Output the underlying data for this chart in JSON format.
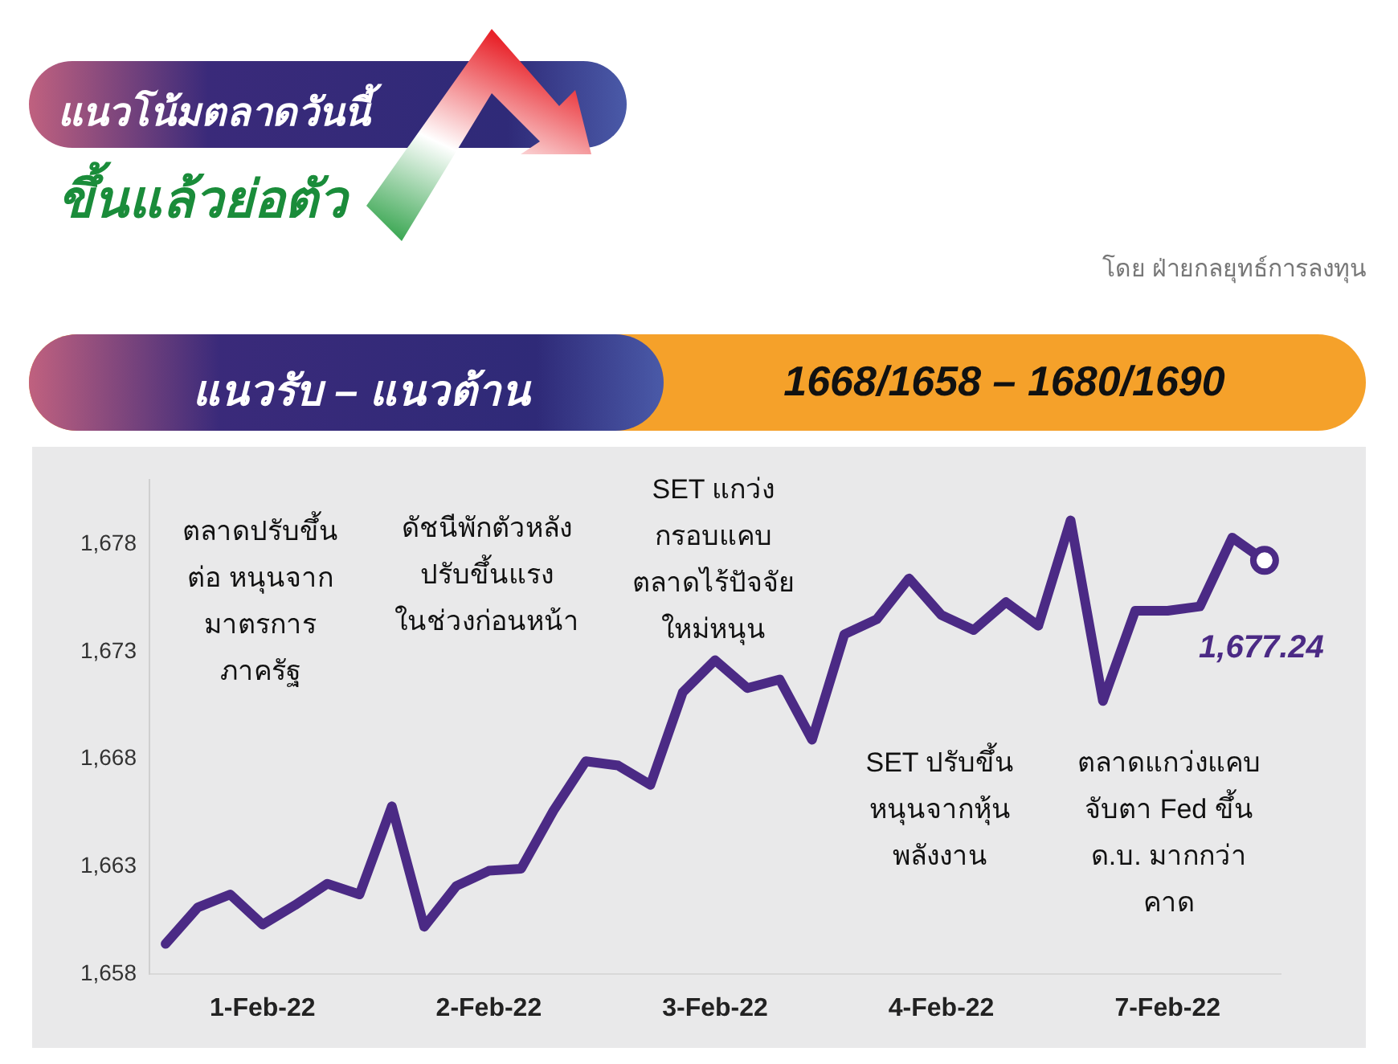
{
  "chart_data": {
    "type": "line",
    "title": "แนวโน้มตลาดวันนี้",
    "subtitle": "ขึ้นแล้วย่อตัว",
    "annotations": [
      "โดย ฝ่ายกลยุทธ์การลงทุน",
      "แนวรับ – แนวต้าน",
      "1668/1658   –   1680/1690",
      "ตลาดปรับขึ้น\nต่อ หนุนจาก\nมาตรการ\nภาครัฐ",
      "ดัชนีพักตัวหลัง\nปรับขึ้นแรง\nในช่วงก่อนหน้า",
      "SET แกว่ง\nกรอบแคบ\nตลาดไร้ปัจจัย\nใหม่หนุน",
      "SET ปรับขึ้น\nหนุนจากหุ้น\nพลังงาน",
      "ตลาดแกว่งแคบ\nจับตา Fed ขึ้น\nด.บ. มากกว่า\nคาด"
    ],
    "categories": [
      null,
      null,
      null,
      "1-Feb-22",
      null,
      null,
      null,
      null,
      null,
      null,
      "2-Feb-22",
      null,
      null,
      null,
      null,
      null,
      null,
      "3-Feb-22",
      null,
      null,
      null,
      null,
      null,
      null,
      "4-Feb-22",
      null,
      null,
      null,
      null,
      null,
      null,
      "7-Feb-22",
      null,
      null,
      null
    ],
    "series": [
      {
        "color": "#4b2a85",
        "values": [
          1659.4,
          1661.1,
          1661.7,
          1660.3,
          1661.2,
          1662.2,
          1661.7,
          1665.8,
          1660.2,
          1662.1,
          1662.8,
          1662.9,
          1665.6,
          1667.9,
          1667.7,
          1666.8,
          1671.1,
          1672.6,
          1671.3,
          1671.7,
          1668.9,
          1673.8,
          1674.5,
          1676.4,
          1674.7,
          1674.0,
          1675.3,
          1674.2,
          1679.1,
          1670.7,
          1674.9,
          1674.9,
          1675.1,
          1678.3,
          1677.24
        ],
        "value_labels": [
          null,
          null,
          null,
          null,
          null,
          null,
          null,
          null,
          null,
          null,
          null,
          null,
          null,
          null,
          null,
          null,
          null,
          null,
          null,
          null,
          null,
          null,
          null,
          null,
          null,
          null,
          null,
          null,
          null,
          null,
          null,
          null,
          null,
          null,
          "1,677.24"
        ]
      }
    ],
    "ylim": [
      1658,
      1681
    ],
    "yticks": [
      {
        "value": 1658,
        "label": "1,658"
      },
      {
        "value": 1663,
        "label": "1,663"
      },
      {
        "value": 1668,
        "label": "1,668"
      },
      {
        "value": 1673,
        "label": "1,673"
      },
      {
        "value": 1678,
        "label": "1,678"
      }
    ],
    "grid": false,
    "legend": false,
    "marker": "none",
    "line_style": "solid"
  }
}
